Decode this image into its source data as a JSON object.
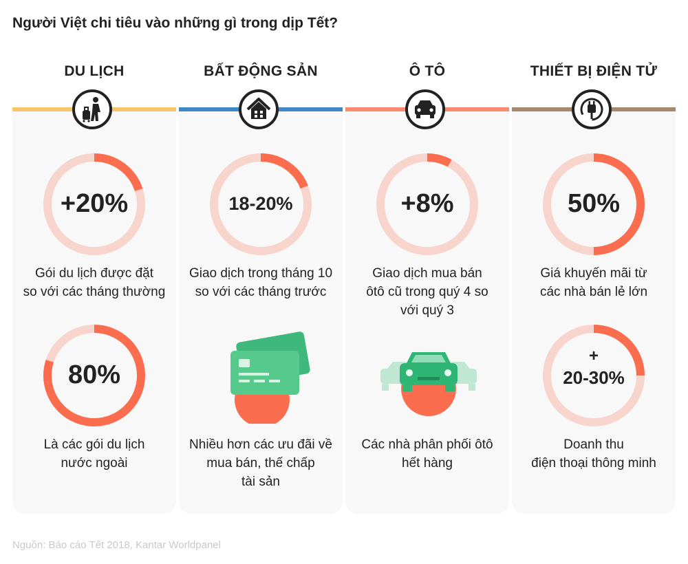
{
  "title": "Người Việt chi tiêu vào những gì trong dịp Tết?",
  "source": "Nguồn: Báo cáo Tết 2018, Kantar Worldpanel",
  "colors": {
    "accent": "#fa6e4f",
    "ring_bg": "#f8d5cc"
  },
  "columns": [
    {
      "category": "DU LỊCH",
      "band_color": "#f7c56a",
      "icon": "traveler-with-luggage-icon",
      "stat1": {
        "value": "+20%",
        "fraction": 0.2,
        "label_line1": "Gói du lịch được đặt",
        "label_line2": "so với các tháng thường"
      },
      "stat2": {
        "value": "80%",
        "fraction": 0.8,
        "label_line1": "Là các gói du lịch",
        "label_line2": "nước ngoài"
      }
    },
    {
      "category": "BẤT ĐỘNG SẢN",
      "band_color": "#3f88c5",
      "icon": "house-icon",
      "stat1": {
        "value": "18-20%",
        "fraction": 0.19,
        "label_line1": "Giao dịch trong tháng 10",
        "label_line2": "so với các tháng trước"
      },
      "stat2": {
        "illustration": "credit-card-icon",
        "label_line1": "Nhiều hơn các ưu đãi về",
        "label_line2": "mua bán, thế chấp",
        "label_line3": "tài sản"
      }
    },
    {
      "category": "Ô TÔ",
      "band_color": "#fa8a70",
      "icon": "car-icon",
      "stat1": {
        "value": "+8%",
        "fraction": 0.08,
        "label_line1": "Giao dịch mua bán",
        "label_line2": "ôtô cũ trong quý 4 so",
        "label_line3": "với quý 3"
      },
      "stat2": {
        "illustration": "cars-icon",
        "label_line1": "Các nhà phân phối ôtô",
        "label_line2": "hết hàng"
      }
    },
    {
      "category": "THIẾT BỊ ĐIỆN TỬ",
      "band_color": "#a38a6e",
      "icon": "power-plug-icon",
      "stat1": {
        "value": "50%",
        "fraction": 0.5,
        "label_line1": "Giá khuyến mãi từ",
        "label_line2": "các nhà bán lẻ lớn"
      },
      "stat2": {
        "value_line1": "+",
        "value_line2": "20-30%",
        "fraction": 0.25,
        "label_line1": "Doanh thu",
        "label_line2": "điện thoại thông minh"
      }
    }
  ]
}
